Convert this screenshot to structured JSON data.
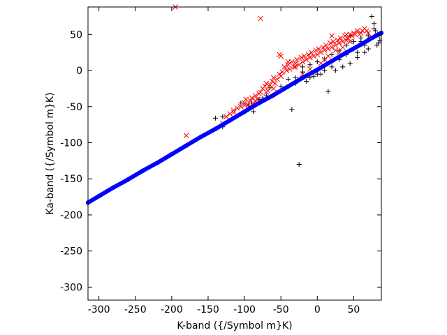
{
  "chart_data": {
    "type": "scatter",
    "xlabel": "K-band ({/Symbol m}K)",
    "ylabel": "Ka-band ({/Symbol m}K)",
    "xlim": [
      -315,
      88
    ],
    "ylim": [
      -318,
      88
    ],
    "xticks": [
      -300,
      -250,
      -200,
      -150,
      -100,
      -50,
      0,
      50
    ],
    "yticks": [
      -300,
      -250,
      -200,
      -150,
      -100,
      -50,
      0,
      50
    ],
    "grid": false,
    "legend": "none",
    "colors": {
      "black_series": "#000000",
      "red_series": "#ff0000",
      "blue_series": "#0000ff"
    },
    "series": [
      {
        "marker": "plus",
        "color": "#000000",
        "x": [
          -25,
          -35,
          15,
          -130,
          -130,
          -140,
          -88,
          -60,
          -65,
          -105,
          -95,
          -75,
          -50,
          -40,
          -30,
          -20,
          -10,
          0,
          10,
          20,
          30,
          40,
          50,
          60,
          75,
          78,
          80,
          83,
          85,
          86,
          82,
          70,
          65,
          55,
          45,
          35,
          25,
          5,
          -5,
          -15,
          -45,
          -55,
          -70,
          -80,
          -90,
          40,
          50,
          60,
          70,
          30,
          20,
          10,
          0,
          -10,
          55,
          65,
          72,
          78,
          84,
          45,
          -20,
          -30
        ],
        "y": [
          -130,
          -54,
          -29,
          -78,
          -64,
          -66,
          -57,
          -34,
          -24,
          -45,
          -48,
          -38,
          -22,
          -12,
          -10,
          -2,
          8,
          12,
          16,
          22,
          28,
          35,
          40,
          45,
          75,
          65,
          55,
          50,
          48,
          42,
          35,
          30,
          25,
          18,
          10,
          5,
          0,
          -5,
          -8,
          -15,
          -25,
          -30,
          -35,
          -40,
          -45,
          22,
          30,
          40,
          48,
          15,
          5,
          0,
          -5,
          -10,
          25,
          35,
          45,
          58,
          38,
          48,
          5,
          -18
        ]
      },
      {
        "marker": "x",
        "color": "#ff0000",
        "x": [
          -195,
          -78,
          -180,
          -130,
          -125,
          -120,
          -115,
          -110,
          -105,
          -100,
          -98,
          -95,
          -92,
          -90,
          -88,
          -85,
          -82,
          -80,
          -78,
          -75,
          -72,
          -70,
          -68,
          -65,
          -62,
          -60,
          -58,
          -55,
          -52,
          -50,
          -48,
          -45,
          -42,
          -40,
          -38,
          -35,
          -32,
          -30,
          -28,
          -25,
          -22,
          -20,
          -18,
          -15,
          -12,
          -10,
          -8,
          -5,
          -2,
          0,
          2,
          5,
          8,
          10,
          12,
          15,
          18,
          20,
          22,
          25,
          28,
          30,
          32,
          35,
          38,
          40,
          42,
          45,
          48,
          50,
          52,
          55,
          58,
          60,
          62,
          65,
          68,
          70,
          30,
          10,
          -50,
          -52,
          -40,
          -30,
          -20,
          -10,
          5,
          15,
          25,
          35,
          45,
          -60,
          -70,
          -85,
          -100,
          -115,
          20,
          40
        ],
        "y": [
          88,
          72,
          -90,
          -73,
          -64,
          -60,
          -55,
          -52,
          -50,
          -45,
          -40,
          -48,
          -42,
          -38,
          -46,
          -35,
          -40,
          -32,
          -30,
          -25,
          -22,
          -18,
          -28,
          -20,
          -15,
          -10,
          -18,
          -12,
          -5,
          -8,
          -2,
          5,
          0,
          8,
          2,
          12,
          5,
          10,
          15,
          8,
          18,
          12,
          20,
          15,
          22,
          18,
          25,
          20,
          28,
          22,
          30,
          25,
          32,
          28,
          35,
          30,
          38,
          32,
          40,
          35,
          42,
          38,
          45,
          40,
          48,
          42,
          45,
          50,
          48,
          52,
          50,
          55,
          50,
          52,
          55,
          58,
          55,
          52,
          25,
          15,
          20,
          22,
          12,
          5,
          -5,
          2,
          10,
          20,
          28,
          32,
          40,
          -25,
          -30,
          -42,
          -48,
          -58,
          48,
          50
        ]
      },
      {
        "marker": "dot",
        "color": "#0000ff",
        "x": [
          -315,
          -300,
          -280,
          -260,
          -240,
          -220,
          -200,
          -180,
          -160,
          -140,
          -120,
          -100,
          -80,
          -60,
          -40,
          -20,
          0,
          20,
          40,
          60,
          80,
          88
        ],
        "y": [
          -183,
          -174,
          -162,
          -151,
          -139,
          -128,
          -116,
          -104,
          -92,
          -81,
          -69,
          -57,
          -45,
          -34,
          -22,
          -10,
          1,
          13,
          25,
          36,
          48,
          52
        ]
      }
    ]
  }
}
